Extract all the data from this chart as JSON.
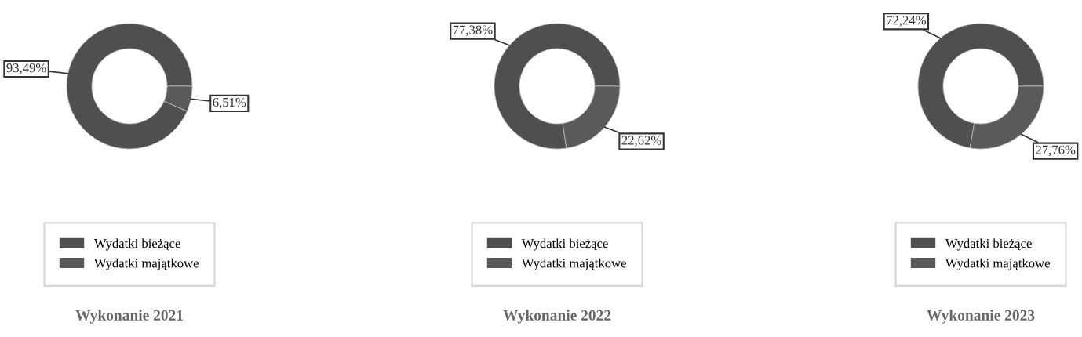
{
  "chart_data": [
    {
      "type": "donut",
      "title": "Wykonanie 2021",
      "categories": [
        "Wydatki bieżące",
        "Wydatki majątkowe"
      ],
      "values": [
        93.49,
        6.51
      ],
      "colors": [
        "#4f4f4f",
        "#5a5a5a"
      ],
      "value_labels": [
        "93,49%",
        "6,51%"
      ],
      "legend": "bottom"
    },
    {
      "type": "donut",
      "title": "Wykonanie 2022",
      "categories": [
        "Wydatki bieżące",
        "Wydatki majątkowe"
      ],
      "values": [
        77.38,
        22.62
      ],
      "colors": [
        "#4f4f4f",
        "#5a5a5a"
      ],
      "value_labels": [
        "77,38%",
        "22,62%"
      ],
      "legend": "bottom"
    },
    {
      "type": "donut",
      "title": "Wykonanie 2023",
      "categories": [
        "Wydatki bieżące",
        "Wydatki majątkowe"
      ],
      "values": [
        72.24,
        27.76
      ],
      "colors": [
        "#4f4f4f",
        "#5a5a5a"
      ],
      "value_labels": [
        "72,24%",
        "27,76%"
      ],
      "legend": "bottom"
    }
  ]
}
